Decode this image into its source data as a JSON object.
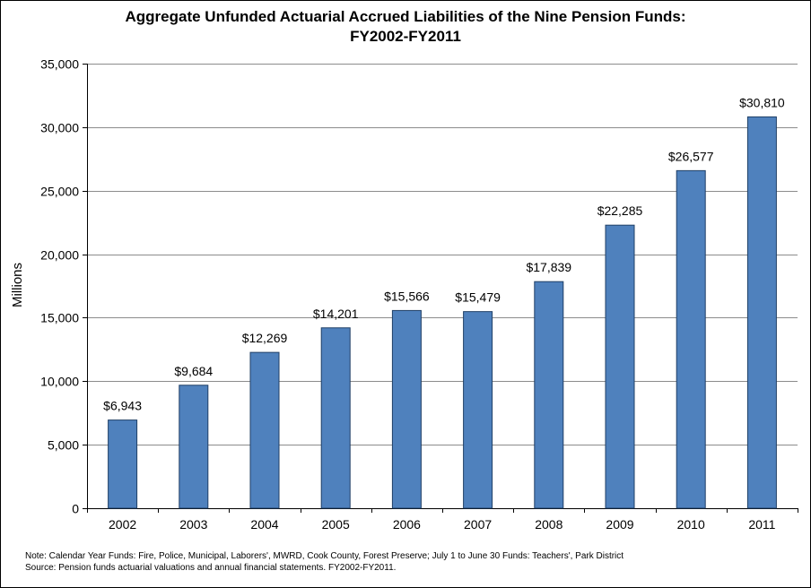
{
  "chart_data": {
    "type": "bar",
    "title_line1": "Aggregate Unfunded Actuarial Accrued Liabilities of the Nine Pension Funds:",
    "title_line2": "FY2002-FY2011",
    "ylabel": "Millions",
    "xlabel": "",
    "categories": [
      "2002",
      "2003",
      "2004",
      "2005",
      "2006",
      "2007",
      "2008",
      "2009",
      "2010",
      "2011"
    ],
    "values": [
      6943,
      9684,
      12269,
      14201,
      15566,
      15479,
      17839,
      22285,
      26577,
      30810
    ],
    "data_labels": [
      "$6,943",
      "$9,684",
      "$12,269",
      "$14,201",
      "$15,566",
      "$15,479",
      "$17,839",
      "$22,285",
      "$26,577",
      "$30,810"
    ],
    "ylim": [
      0,
      35000
    ],
    "yticks": [
      0,
      5000,
      10000,
      15000,
      20000,
      25000,
      30000,
      35000
    ],
    "ytick_labels": [
      "0",
      "5,000",
      "10,000",
      "15,000",
      "20,000",
      "25,000",
      "30,000",
      "35,000"
    ],
    "grid": true,
    "legend": "none",
    "bar_color": "#4f81bd",
    "bar_border_color": "#1f3f66",
    "grid_color": "#8c8c8c"
  },
  "notes": {
    "note": "Note: Calendar Year Funds: Fire, Police, Municipal, Laborers', MWRD, Cook County, Forest Preserve; July 1 to June 30 Funds: Teachers', Park District",
    "source": "Source: Pension funds actuarial valuations and annual financial statements. FY2002-FY2011."
  }
}
